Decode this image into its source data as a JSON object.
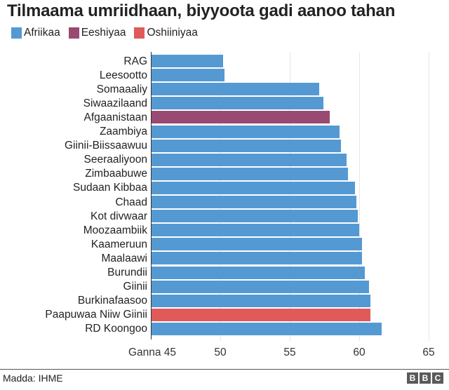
{
  "header": {
    "title": "Tilmaama umriidhaan, biyyoota gadi aanoo tahan"
  },
  "legend": [
    {
      "label": "Afriikaa",
      "color": "#5599d3"
    },
    {
      "label": "Eeshiyaa",
      "color": "#994a70"
    },
    {
      "label": "Oshiiniyaa",
      "color": "#e05a5a"
    }
  ],
  "footer": {
    "source": "Madda: IHME",
    "logo": [
      "B",
      "B",
      "C"
    ]
  },
  "axis": {
    "ticks": [
      {
        "label": "Ganna 45",
        "value": 45
      },
      {
        "label": "50",
        "value": 50
      },
      {
        "label": "55",
        "value": 55
      },
      {
        "label": "60",
        "value": 60
      },
      {
        "label": "65",
        "value": 65
      }
    ]
  },
  "chart_data": {
    "type": "bar",
    "orientation": "horizontal",
    "title": "Tilmaama umriidhaan, biyyoota gadi aanoo tahan",
    "xlabel": "",
    "ylabel": "",
    "xlim": [
      45,
      65
    ],
    "grid": true,
    "legend_position": "top-left",
    "categories": [
      "RAG",
      "Leesootto",
      "Somaaaliy",
      "Siwaazilaand",
      "Afgaanistaan",
      "Zaambiya",
      "Giinii-Biissaawuu",
      "Seeraaliyoon",
      "Zimbaabuwe",
      "Sudaan Kibbaa",
      "Chaad",
      "Kot divwaar",
      "Moozaambiik",
      "Kaameruun",
      "Maalaawi",
      "Burundii",
      "Giinii",
      "Burkinafaasoo",
      "Paapuwaa Niiw Giinii",
      "RD Koongoo"
    ],
    "values": [
      50.2,
      50.3,
      57.1,
      57.4,
      57.9,
      58.6,
      58.7,
      59.1,
      59.2,
      59.7,
      59.8,
      59.9,
      60.0,
      60.2,
      60.2,
      60.4,
      60.7,
      60.8,
      60.8,
      61.6
    ],
    "groups": [
      "Afriikaa",
      "Afriikaa",
      "Afriikaa",
      "Afriikaa",
      "Eeshiyaa",
      "Afriikaa",
      "Afriikaa",
      "Afriikaa",
      "Afriikaa",
      "Afriikaa",
      "Afriikaa",
      "Afriikaa",
      "Afriikaa",
      "Afriikaa",
      "Afriikaa",
      "Afriikaa",
      "Afriikaa",
      "Afriikaa",
      "Oshiiniyaa",
      "Afriikaa"
    ],
    "legend": [
      "Afriikaa",
      "Eeshiyaa",
      "Oshiiniyaa"
    ],
    "tick_labels": [
      "Ganna 45",
      "50",
      "55",
      "60",
      "65"
    ],
    "source": "Madda: IHME"
  }
}
